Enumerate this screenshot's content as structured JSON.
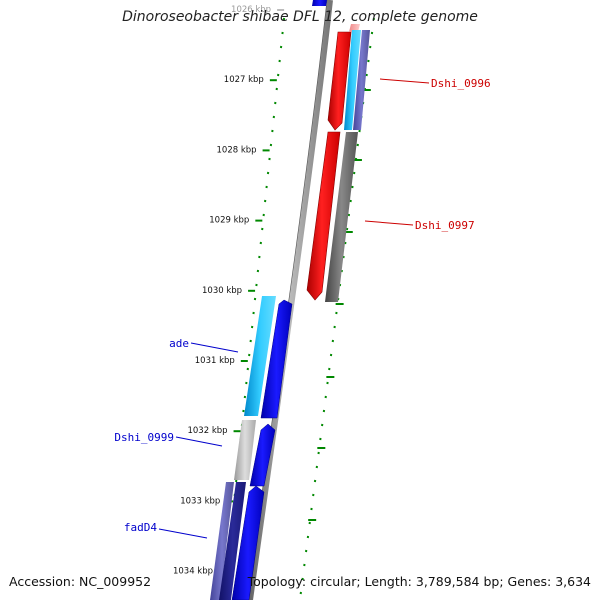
{
  "title": "Dinoroseobacter shibae DFL 12, complete genome",
  "footer": {
    "accession": "Accession: NC_009952",
    "topology": "Topology: circular; Length: 3,789,584 bp; Genes: 3,634"
  },
  "colors": {
    "cds_forward": "#0000ee",
    "cds_forward_dark": "#222288",
    "cds_purple": "#5555aa",
    "cds_reverse": "#ee0000",
    "rrna_cyan": "#00bbee",
    "pseudo_grey": "#777777",
    "scale_green": "#008800",
    "backbone_grey": "#888888"
  },
  "scale_labels": [
    {
      "kbp": 1026,
      "text": "1026 kbp"
    },
    {
      "kbp": 1027,
      "text": "1027 kbp"
    },
    {
      "kbp": 1028,
      "text": "1028 kbp"
    },
    {
      "kbp": 1029,
      "text": "1029 kbp"
    },
    {
      "kbp": 1030,
      "text": "1030 kbp"
    },
    {
      "kbp": 1031,
      "text": "1031 kbp"
    },
    {
      "kbp": 1032,
      "text": "1032 kbp"
    },
    {
      "kbp": 1033,
      "text": "1033 kbp"
    },
    {
      "kbp": 1034,
      "text": "1034 kbp"
    }
  ],
  "gene_labels": [
    {
      "name": "Dshi_0996",
      "strand": "reverse"
    },
    {
      "name": "Dshi_0997",
      "strand": "reverse"
    },
    {
      "name": "ade",
      "strand": "forward"
    },
    {
      "name": "Dshi_0999",
      "strand": "forward"
    },
    {
      "name": "fadD4",
      "strand": "forward"
    }
  ]
}
